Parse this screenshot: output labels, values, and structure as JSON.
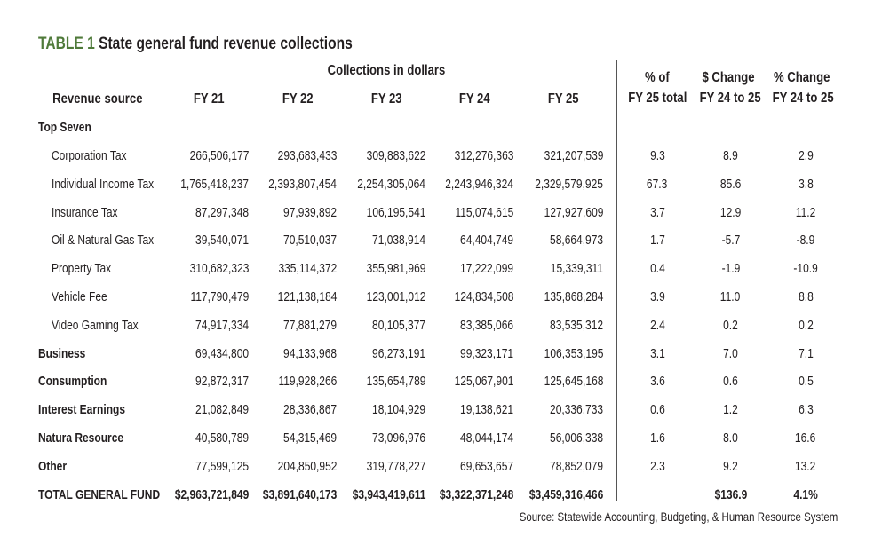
{
  "title": {
    "label": "TABLE 1",
    "text": "State general fund revenue collections"
  },
  "group_header": "Collections in dollars",
  "columns": {
    "source": "Revenue source",
    "fy21": "FY 21",
    "fy22": "FY 22",
    "fy23": "FY 23",
    "fy24": "FY 24",
    "fy25": "FY 25",
    "pct_l1": "% of",
    "pct_l2": "FY 25 total",
    "chg_l1": "$ Change",
    "chg_l2": "FY 24 to 25",
    "pchg_l1": "% Change",
    "pchg_l2": "FY 24 to 25"
  },
  "section_label": "Top Seven",
  "rows": [
    {
      "name": "Corporation Tax",
      "fy21": "266,506,177",
      "fy22": "293,683,433",
      "fy23": "309,883,622",
      "fy24": "312,276,363",
      "fy25": "321,207,539",
      "pct": "9.3",
      "chg": "8.9",
      "pchg": "2.9"
    },
    {
      "name": "Individual Income Tax",
      "fy21": "1,765,418,237",
      "fy22": "2,393,807,454",
      "fy23": "2,254,305,064",
      "fy24": "2,243,946,324",
      "fy25": "2,329,579,925",
      "pct": "67.3",
      "chg": "85.6",
      "pchg": "3.8"
    },
    {
      "name": "Insurance Tax",
      "fy21": "87,297,348",
      "fy22": "97,939,892",
      "fy23": "106,195,541",
      "fy24": "115,074,615",
      "fy25": "127,927,609",
      "pct": "3.7",
      "chg": "12.9",
      "pchg": "11.2"
    },
    {
      "name": "Oil & Natural Gas Tax",
      "fy21": "39,540,071",
      "fy22": "70,510,037",
      "fy23": "71,038,914",
      "fy24": "64,404,749",
      "fy25": "58,664,973",
      "pct": "1.7",
      "chg": "-5.7",
      "pchg": "-8.9"
    },
    {
      "name": "Property Tax",
      "fy21": "310,682,323",
      "fy22": "335,114,372",
      "fy23": "355,981,969",
      "fy24": "17,222,099",
      "fy25": "15,339,311",
      "pct": "0.4",
      "chg": "-1.9",
      "pchg": "-10.9"
    },
    {
      "name": "Vehicle Fee",
      "fy21": "117,790,479",
      "fy22": "121,138,184",
      "fy23": "123,001,012",
      "fy24": "124,834,508",
      "fy25": "135,868,284",
      "pct": "3.9",
      "chg": "11.0",
      "pchg": "8.8"
    },
    {
      "name": "Video Gaming Tax",
      "fy21": "74,917,334",
      "fy22": "77,881,279",
      "fy23": "80,105,377",
      "fy24": "83,385,066",
      "fy25": "83,535,312",
      "pct": "2.4",
      "chg": "0.2",
      "pchg": "0.2"
    },
    {
      "name": "Business",
      "fy21": "69,434,800",
      "fy22": "94,133,968",
      "fy23": "96,273,191",
      "fy24": "99,323,171",
      "fy25": "106,353,195",
      "pct": "3.1",
      "chg": "7.0",
      "pchg": "7.1"
    },
    {
      "name": "Consumption",
      "fy21": "92,872,317",
      "fy22": "119,928,266",
      "fy23": "135,654,789",
      "fy24": "125,067,901",
      "fy25": "125,645,168",
      "pct": "3.6",
      "chg": "0.6",
      "pchg": "0.5"
    },
    {
      "name": "Interest Earnings",
      "fy21": "21,082,849",
      "fy22": "28,336,867",
      "fy23": "18,104,929",
      "fy24": "19,138,621",
      "fy25": "20,336,733",
      "pct": "0.6",
      "chg": "1.2",
      "pchg": "6.3"
    },
    {
      "name": "Natura Resource",
      "fy21": "40,580,789",
      "fy22": "54,315,469",
      "fy23": "73,096,976",
      "fy24": "48,044,174",
      "fy25": "56,006,338",
      "pct": "1.6",
      "chg": "8.0",
      "pchg": "16.6"
    },
    {
      "name": "Other",
      "fy21": "77,599,125",
      "fy22": "204,850,952",
      "fy23": "319,778,227",
      "fy24": "69,653,657",
      "fy25": "78,852,079",
      "pct": "2.3",
      "chg": "9.2",
      "pchg": "13.2"
    }
  ],
  "total": {
    "name": "TOTAL GENERAL FUND",
    "fy21": "$2,963,721,849",
    "fy22": "$3,891,640,173",
    "fy23": "$3,943,419,611",
    "fy24": "$3,322,371,248",
    "fy25": "$3,459,316,466",
    "pct": "",
    "chg": "$136.9",
    "pchg": "4.1%"
  },
  "source_note": "Source: Statewide Accounting, Budgeting, & Human Resource System"
}
